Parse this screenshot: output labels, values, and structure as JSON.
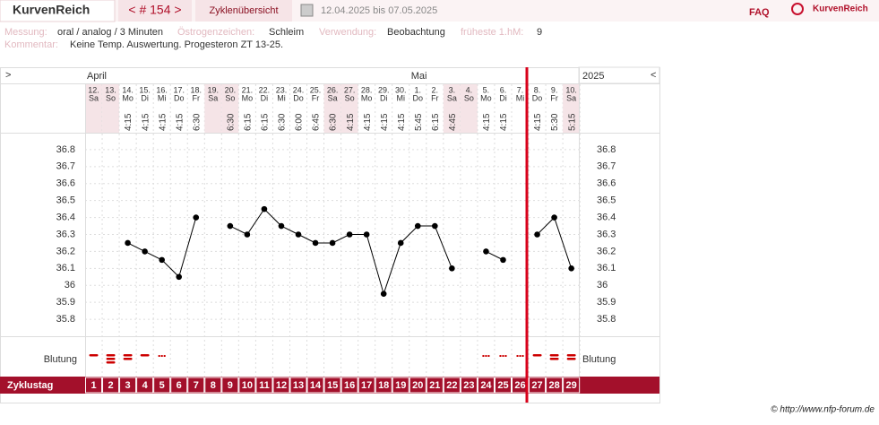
{
  "header": {
    "title": "KurvenReich",
    "cycle_nav": "< # 154 >",
    "overview": "Zyklenübersicht",
    "date_range": "12.04.2025 bis 07.05.2025",
    "faq": "FAQ",
    "logo": "KurvenReich"
  },
  "info": {
    "measurement_label": "Messung:",
    "measurement": "oral / analog / 3 Minuten",
    "estrogen_label": "Östrogenzeichen:",
    "estrogen": "Schleim",
    "usage_label": "Verwendung:",
    "usage": "Beobachtung",
    "earliest_label": "früheste 1.hM:",
    "earliest": 9,
    "comment_label": "Kommentar:",
    "comment": "Keine Temp. Auswertung. Progesteron ZT 13-25."
  },
  "chart_data": {
    "type": "line",
    "nav_prev": ">",
    "nav_next": "<",
    "year": "2025",
    "months": [
      "April",
      null,
      null,
      null,
      null,
      null,
      null,
      null,
      null,
      null,
      null,
      null,
      null,
      null,
      null,
      null,
      null,
      null,
      null,
      "Mai",
      null,
      null,
      null,
      null,
      null,
      null,
      null,
      null,
      null
    ],
    "days": [
      "12.",
      "13.",
      "14.",
      "15.",
      "16.",
      "17.",
      "18.",
      "19.",
      "20.",
      "21.",
      "22.",
      "23.",
      "24.",
      "25.",
      "26.",
      "27.",
      "28.",
      "29.",
      "30.",
      "1.",
      "2.",
      "3.",
      "4.",
      "5.",
      "6.",
      "7.",
      "8.",
      "9.",
      "10."
    ],
    "weekdays": [
      "Sa",
      "So",
      "Mo",
      "Di",
      "Mi",
      "Do",
      "Fr",
      "Sa",
      "So",
      "Mo",
      "Di",
      "Mi",
      "Do",
      "Fr",
      "Sa",
      "So",
      "Mo",
      "Di",
      "Mi",
      "Do",
      "Fr",
      "Sa",
      "So",
      "Mo",
      "Di",
      "Mi",
      "Do",
      "Fr",
      "Sa"
    ],
    "times": [
      null,
      null,
      "4:15",
      "4:15",
      "4:15",
      "4:15",
      "6:30",
      null,
      "6:30",
      "6:15",
      "6:15",
      "6:30",
      "6:00",
      "6:45",
      "6:30",
      "4:15",
      "4:15",
      "4:15",
      "4:15",
      "5:45",
      "6:15",
      "4:45",
      null,
      "4:15",
      "4:15",
      null,
      "4:15",
      "5:30",
      "5:15"
    ],
    "values": [
      null,
      null,
      36.25,
      36.2,
      36.15,
      36.05,
      36.4,
      null,
      36.35,
      36.3,
      36.45,
      36.35,
      36.3,
      36.25,
      36.25,
      36.3,
      36.3,
      35.95,
      36.25,
      36.35,
      36.35,
      36.1,
      null,
      36.2,
      36.15,
      null,
      36.3,
      36.4,
      36.1
    ],
    "color": "#000000",
    "ylim": [
      35.7,
      36.9
    ],
    "yticks": [
      35.8,
      35.9,
      36,
      36.1,
      36.2,
      36.3,
      36.4,
      36.5,
      36.6,
      36.7,
      36.8
    ],
    "grid": true,
    "bleeding_label": "Blutung",
    "bleeding": [
      2,
      4,
      3,
      2,
      1,
      null,
      null,
      null,
      null,
      null,
      null,
      null,
      null,
      null,
      null,
      null,
      null,
      null,
      null,
      null,
      null,
      null,
      null,
      1,
      1,
      1,
      2,
      3,
      3
    ],
    "bleeding_color": "#cc0000",
    "cycle_day_label": "Zyklustag",
    "cycle_days": [
      1,
      2,
      3,
      4,
      5,
      6,
      7,
      8,
      9,
      10,
      11,
      12,
      13,
      14,
      15,
      16,
      17,
      18,
      19,
      20,
      21,
      22,
      23,
      24,
      25,
      26,
      27,
      28,
      29
    ]
  },
  "footer": "© http://www.nfp-forum.de"
}
